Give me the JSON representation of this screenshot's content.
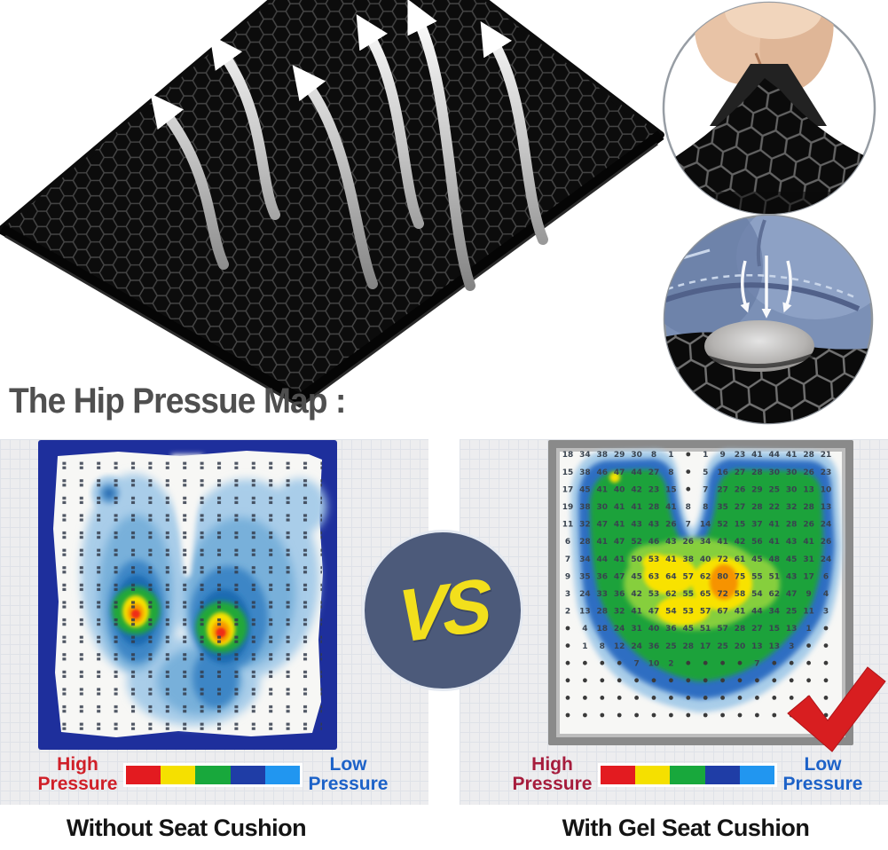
{
  "heading": {
    "text": "The Hip Pressue Map :",
    "color": "#4f4f4f"
  },
  "vs_badge": {
    "label": "VS",
    "bg": "#4c5a7a",
    "text_color": "#f2df1c"
  },
  "legend": {
    "colors": [
      "#e31b20",
      "#f5e000",
      "#18a83c",
      "#1f3da6",
      "#2196f0"
    ],
    "left": {
      "high_line1": "High",
      "high_line2": "Pressure",
      "low_line1": "Low",
      "low_line2": "Pressure",
      "high_color": "#d01f28",
      "low_color": "#1d62c8"
    },
    "right": {
      "high_line1": "High",
      "high_line2": "Pressure",
      "low_line1": "Low",
      "low_line2": "Pressure",
      "high_color": "#a61c3c",
      "low_color": "#1d62c8"
    }
  },
  "captions": {
    "left": "Without Seat Cushion",
    "right": "With Gel Seat Cushion"
  },
  "pressure_map_with": {
    "values": [
      [
        18,
        34,
        38,
        29,
        30,
        8,
        1,
        0,
        1,
        9,
        23,
        41,
        44,
        41,
        28,
        21
      ],
      [
        15,
        38,
        46,
        47,
        44,
        27,
        8,
        0,
        5,
        16,
        27,
        28,
        30,
        30,
        26,
        23
      ],
      [
        17,
        45,
        41,
        40,
        42,
        23,
        15,
        0,
        7,
        27,
        26,
        29,
        25,
        30,
        13,
        10
      ],
      [
        19,
        38,
        30,
        41,
        41,
        28,
        41,
        8,
        8,
        35,
        27,
        28,
        22,
        32,
        28,
        13
      ],
      [
        11,
        32,
        47,
        41,
        43,
        43,
        26,
        7,
        14,
        52,
        15,
        37,
        41,
        28,
        26,
        24
      ],
      [
        6,
        28,
        41,
        47,
        52,
        46,
        43,
        26,
        34,
        41,
        42,
        56,
        41,
        43,
        41,
        26
      ],
      [
        7,
        34,
        44,
        41,
        50,
        53,
        41,
        38,
        40,
        72,
        61,
        45,
        48,
        45,
        31,
        24
      ],
      [
        9,
        35,
        36,
        47,
        45,
        63,
        64,
        57,
        62,
        80,
        75,
        55,
        51,
        43,
        17,
        6
      ],
      [
        3,
        24,
        33,
        36,
        42,
        53,
        62,
        55,
        65,
        72,
        58,
        54,
        62,
        47,
        9,
        4
      ],
      [
        2,
        13,
        28,
        32,
        41,
        47,
        54,
        53,
        57,
        67,
        41,
        44,
        34,
        25,
        11,
        3
      ],
      [
        0,
        4,
        18,
        24,
        31,
        40,
        36,
        45,
        51,
        57,
        28,
        27,
        15,
        13,
        1,
        0
      ],
      [
        0,
        1,
        8,
        12,
        24,
        36,
        25,
        28,
        17,
        25,
        20,
        13,
        13,
        3,
        0,
        0
      ],
      [
        0,
        0,
        0,
        0,
        7,
        10,
        2,
        0,
        0,
        0,
        0,
        7,
        0,
        0,
        0,
        0
      ],
      [
        0,
        0,
        0,
        0,
        0,
        0,
        0,
        0,
        0,
        0,
        0,
        0,
        0,
        0,
        0,
        0
      ],
      [
        0,
        0,
        0,
        0,
        0,
        0,
        0,
        0,
        0,
        0,
        0,
        0,
        0,
        0,
        0,
        0
      ],
      [
        0,
        0,
        0,
        0,
        0,
        0,
        0,
        0,
        0,
        0,
        0,
        0,
        0,
        0,
        0,
        0
      ]
    ]
  },
  "colors": {
    "left_map_frame": "#1e2f9c",
    "right_map_frame": "#8a8a8a",
    "checkmark": "#d81e20"
  }
}
